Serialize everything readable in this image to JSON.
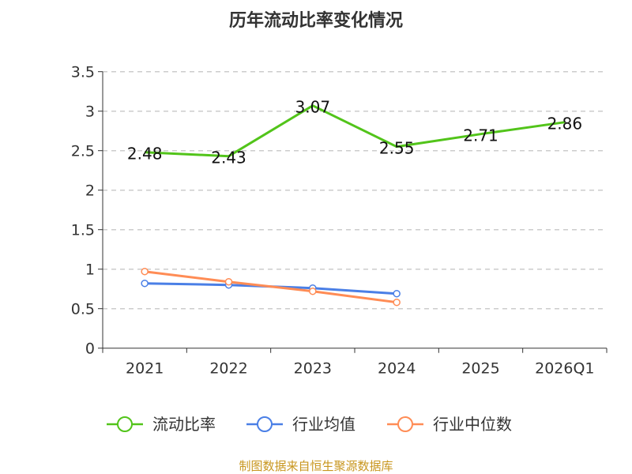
{
  "chart_data": {
    "type": "line",
    "title": "历年流动比率变化情况",
    "categories": [
      "2021",
      "2022",
      "2023",
      "2024",
      "2025",
      "2026Q1"
    ],
    "yticks": [
      "0",
      "0.5",
      "1",
      "1.5",
      "2",
      "2.5",
      "3",
      "3.5"
    ],
    "ylim": [
      0,
      3.5
    ],
    "grid": true,
    "legend_position": "bottom",
    "series": [
      {
        "name": "流动比率",
        "color": "#52c41a",
        "values": [
          2.48,
          2.43,
          3.07,
          2.55,
          2.71,
          2.86
        ],
        "labels": [
          "2.48",
          "2.43",
          "3.07",
          "2.55",
          "2.71",
          "2.86"
        ],
        "markers": false
      },
      {
        "name": "行业均值",
        "color": "#4a7fe6",
        "values": [
          0.82,
          0.8,
          0.76,
          0.69,
          null,
          null
        ],
        "markers": true
      },
      {
        "name": "行业中位数",
        "color": "#ff8c55",
        "values": [
          0.97,
          0.84,
          0.72,
          0.58,
          null,
          null
        ],
        "markers": true
      }
    ],
    "source": "制图数据来自恒生聚源数据库"
  }
}
